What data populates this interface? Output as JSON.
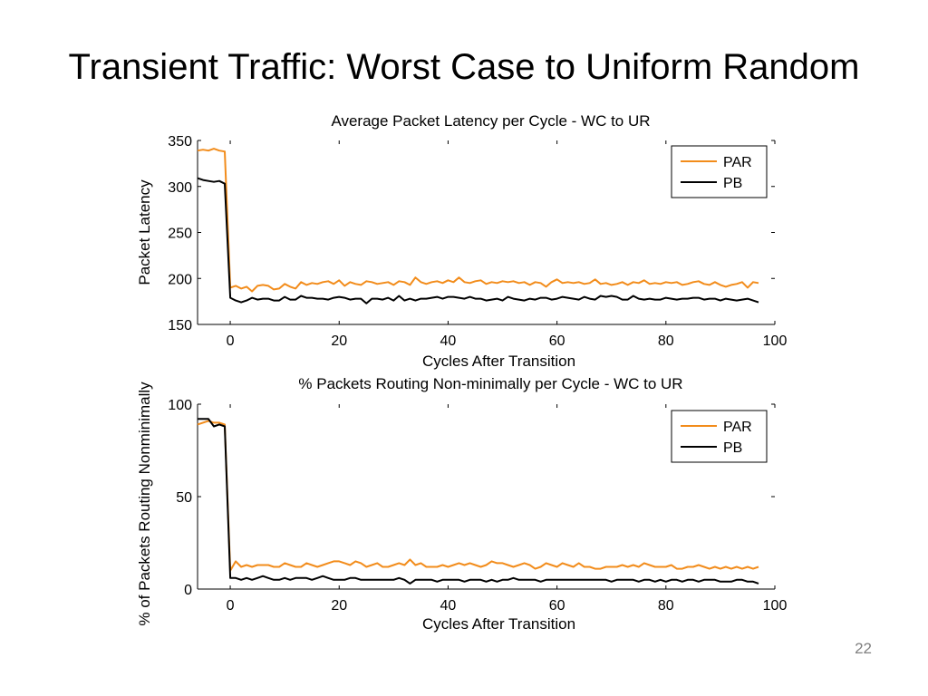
{
  "slide": {
    "title": "Transient Traffic: Worst Case to Uniform Random",
    "page_number": "22"
  },
  "colors": {
    "PAR": "#f28c1b",
    "PB": "#000000"
  },
  "chart_data": [
    {
      "type": "line",
      "title": "Average Packet Latency per Cycle - WC to UR",
      "xlabel": "Cycles After Transition",
      "ylabel": "Packet Latency",
      "xlim": [
        -6,
        100
      ],
      "ylim": [
        150,
        350
      ],
      "xticks": [
        0,
        20,
        40,
        60,
        80,
        100
      ],
      "yticks": [
        150,
        200,
        250,
        300,
        350
      ],
      "legend": "top-right",
      "series": [
        {
          "name": "PAR",
          "x_start": -6,
          "values": [
            339,
            340,
            339,
            341,
            339,
            338,
            190,
            192,
            189,
            191,
            186,
            192,
            193,
            192,
            188,
            189,
            194,
            191,
            189,
            196,
            193,
            195,
            194,
            196,
            197,
            194,
            198,
            192,
            196,
            194,
            193,
            197,
            196,
            194,
            195,
            196,
            193,
            197,
            196,
            193,
            201,
            196,
            194,
            196,
            197,
            195,
            198,
            196,
            201,
            196,
            195,
            197,
            198,
            194,
            196,
            195,
            197,
            196,
            197,
            195,
            196,
            193,
            196,
            195,
            191,
            196,
            199,
            195,
            196,
            195,
            196,
            194,
            195,
            199,
            194,
            195,
            193,
            194,
            196,
            193,
            196,
            195,
            198,
            194,
            195,
            194,
            196,
            195,
            196,
            193,
            194,
            196,
            197,
            194,
            193,
            196,
            193,
            191,
            193,
            194,
            196,
            190,
            196,
            195
          ]
        },
        {
          "name": "PB",
          "x_start": -6,
          "values": [
            309,
            307,
            306,
            305,
            306,
            303,
            179,
            176,
            174,
            176,
            179,
            177,
            178,
            178,
            176,
            176,
            180,
            177,
            177,
            181,
            179,
            179,
            178,
            178,
            177,
            179,
            180,
            179,
            177,
            178,
            178,
            173,
            178,
            178,
            177,
            179,
            176,
            181,
            176,
            178,
            176,
            178,
            178,
            179,
            180,
            178,
            180,
            180,
            179,
            178,
            180,
            178,
            178,
            176,
            177,
            178,
            176,
            180,
            178,
            177,
            176,
            178,
            177,
            179,
            179,
            177,
            178,
            180,
            179,
            178,
            177,
            180,
            178,
            177,
            181,
            180,
            181,
            180,
            177,
            177,
            181,
            178,
            177,
            178,
            177,
            177,
            179,
            178,
            177,
            178,
            178,
            179,
            179,
            177,
            178,
            178,
            176,
            178,
            177,
            176,
            177,
            178,
            176,
            174
          ]
        }
      ]
    },
    {
      "type": "line",
      "title": "% Packets Routing Non-minimally per Cycle - WC to UR",
      "xlabel": "Cycles After Transition",
      "ylabel": "% of Packets Routing Nonminimally",
      "xlim": [
        -6,
        100
      ],
      "ylim": [
        0,
        100
      ],
      "xticks": [
        0,
        20,
        40,
        60,
        80,
        100
      ],
      "yticks": [
        0,
        50,
        100
      ],
      "legend": "top-right",
      "series": [
        {
          "name": "PAR",
          "x_start": -6,
          "values": [
            89,
            90,
            91,
            90,
            90,
            89,
            10,
            15,
            12,
            13,
            12,
            13,
            13,
            13,
            12,
            12,
            14,
            13,
            12,
            12,
            14,
            13,
            12,
            13,
            14,
            15,
            15,
            14,
            13,
            15,
            14,
            12,
            13,
            14,
            12,
            12,
            13,
            14,
            13,
            16,
            13,
            14,
            12,
            12,
            12,
            13,
            12,
            13,
            14,
            13,
            14,
            13,
            12,
            13,
            15,
            14,
            14,
            13,
            12,
            13,
            14,
            13,
            11,
            12,
            14,
            13,
            12,
            14,
            13,
            12,
            14,
            12,
            12,
            11,
            11,
            12,
            12,
            12,
            13,
            12,
            13,
            12,
            14,
            13,
            12,
            12,
            12,
            13,
            11,
            11,
            12,
            12,
            13,
            12,
            11,
            12,
            11,
            12,
            11,
            12,
            11,
            12,
            11,
            12
          ]
        },
        {
          "name": "PB",
          "x_start": -6,
          "values": [
            92,
            92,
            92,
            88,
            89,
            88,
            6,
            6,
            5,
            6,
            5,
            6,
            7,
            6,
            5,
            5,
            6,
            5,
            6,
            6,
            6,
            5,
            6,
            7,
            6,
            5,
            5,
            5,
            6,
            6,
            5,
            5,
            5,
            5,
            5,
            5,
            5,
            6,
            5,
            3,
            5,
            5,
            5,
            5,
            4,
            5,
            5,
            5,
            5,
            4,
            5,
            5,
            5,
            4,
            5,
            4,
            5,
            5,
            6,
            5,
            5,
            5,
            5,
            4,
            5,
            5,
            5,
            5,
            5,
            5,
            5,
            5,
            5,
            5,
            5,
            5,
            4,
            5,
            5,
            5,
            5,
            4,
            5,
            5,
            4,
            5,
            4,
            5,
            5,
            4,
            5,
            5,
            4,
            5,
            5,
            5,
            4,
            4,
            4,
            5,
            5,
            4,
            4,
            3
          ]
        }
      ]
    }
  ]
}
